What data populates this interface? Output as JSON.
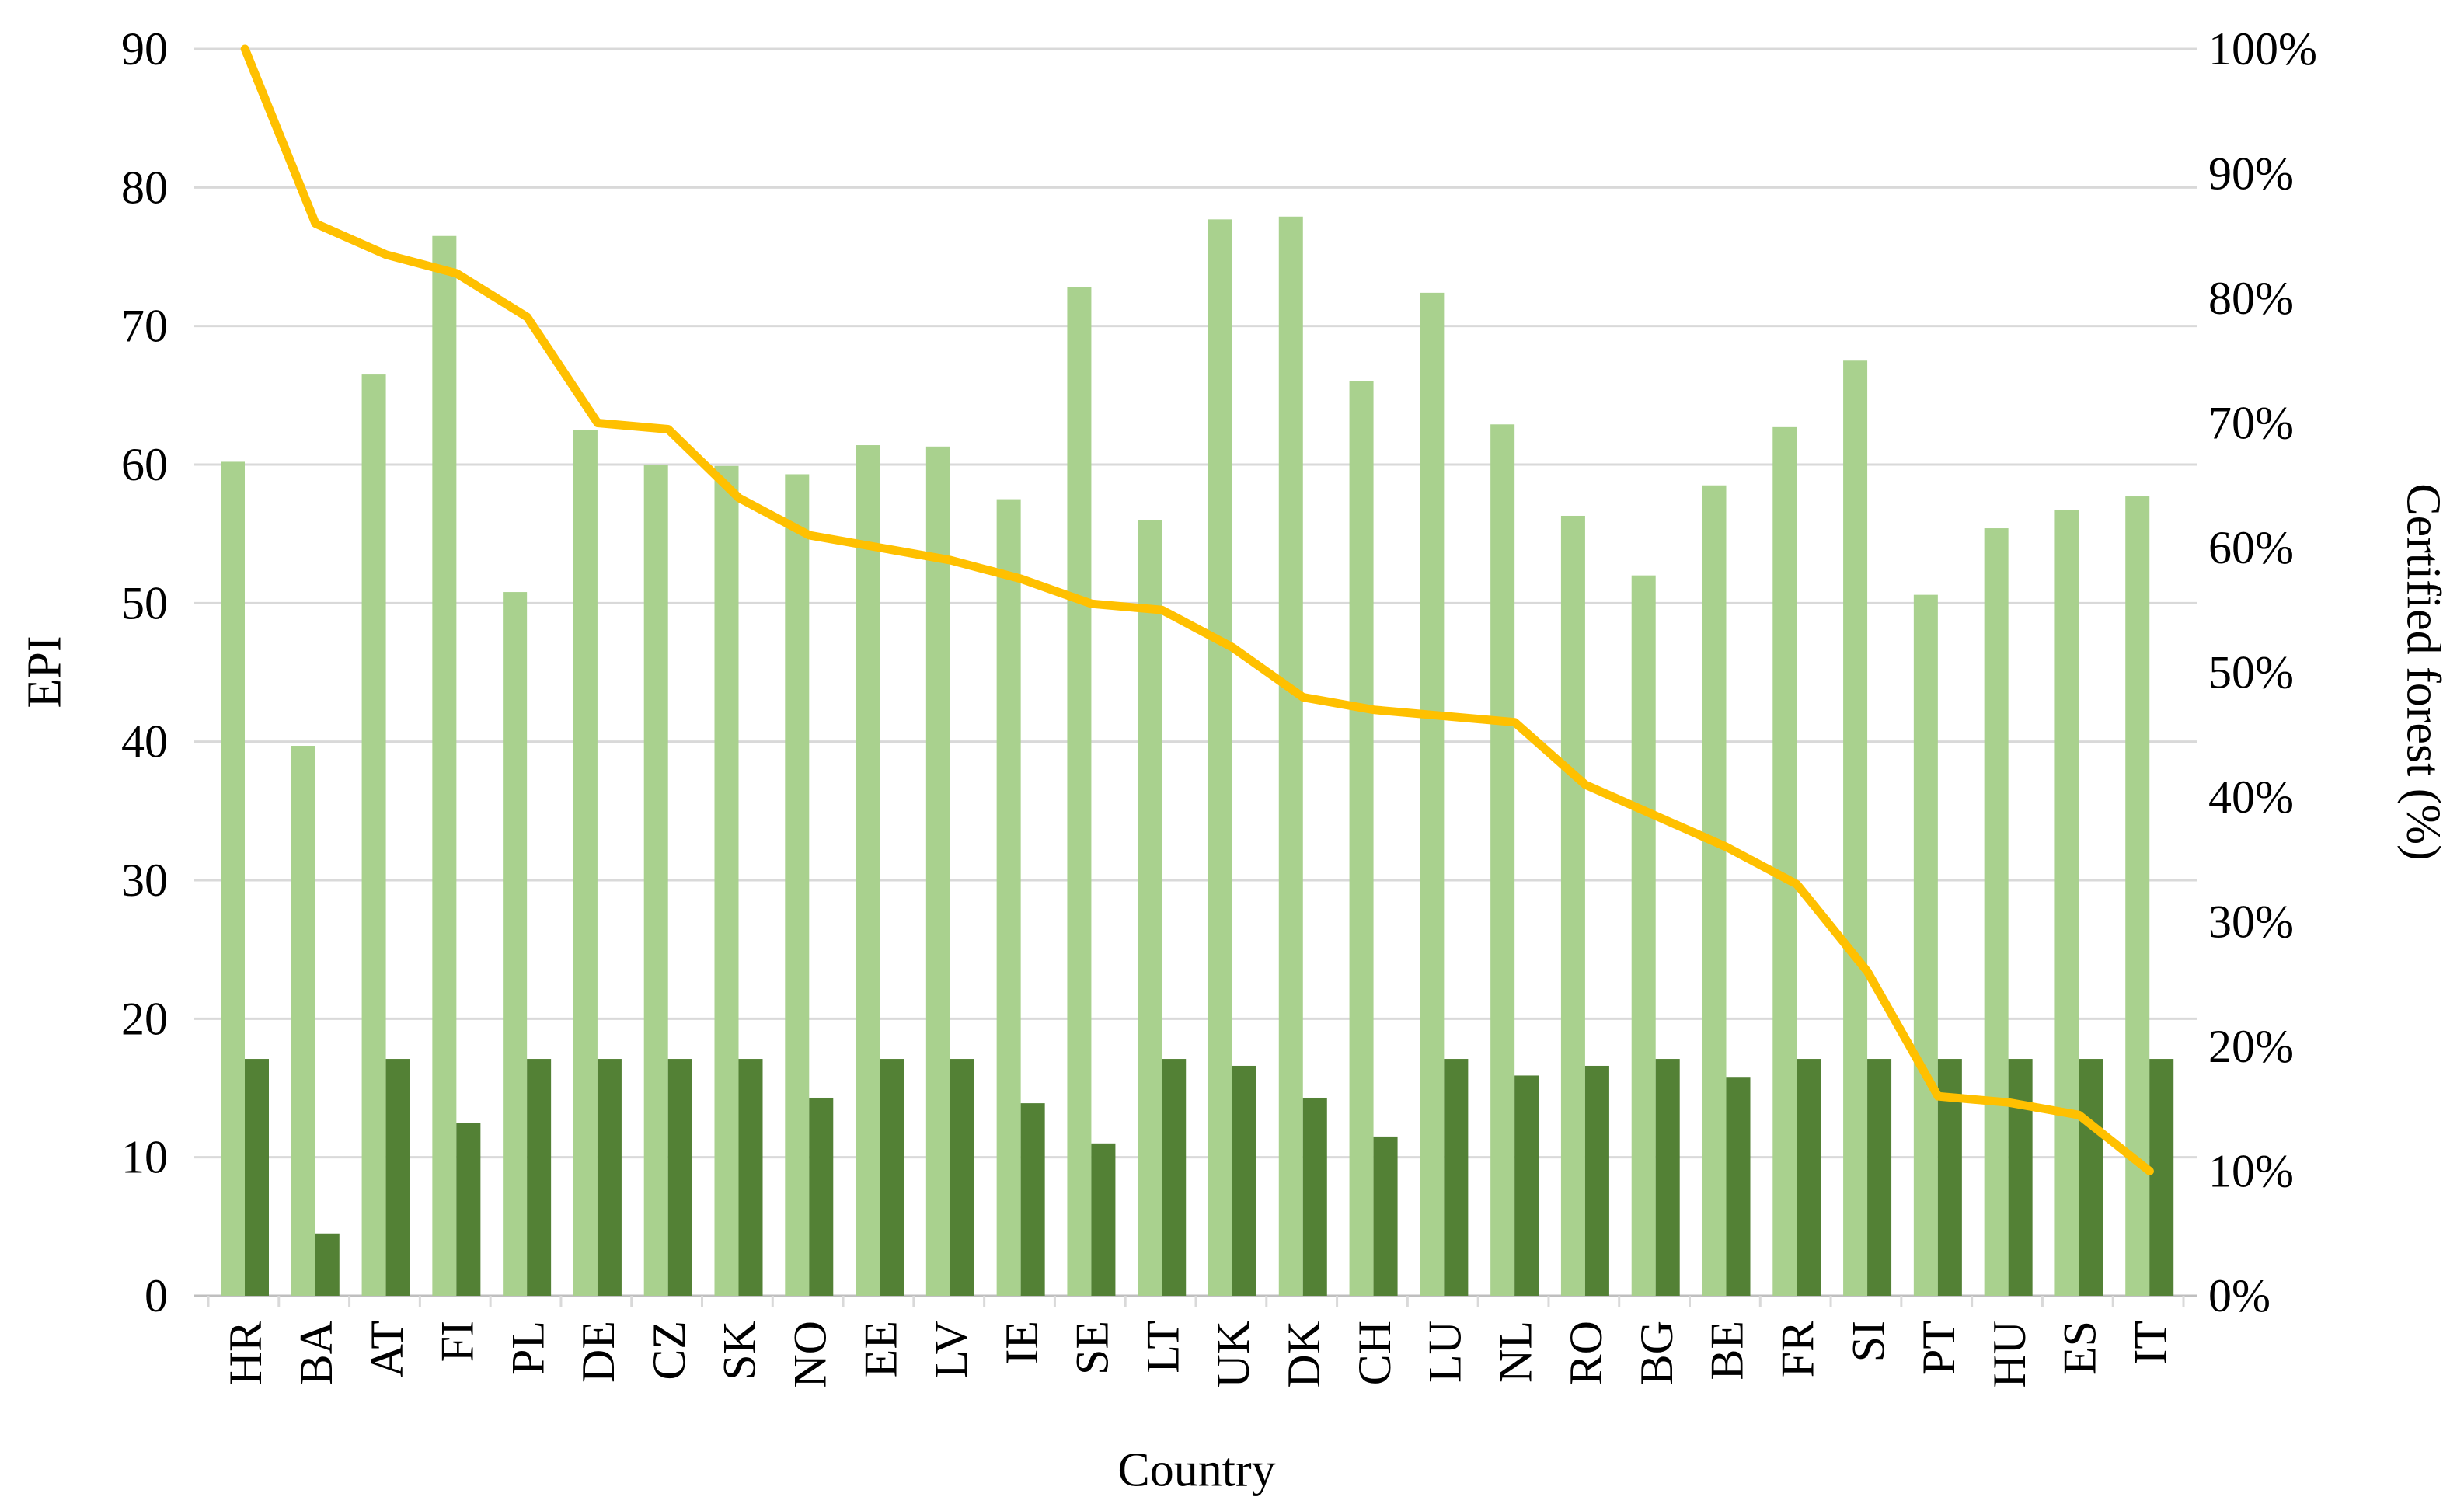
{
  "chart_data": {
    "type": "combo_bar_line",
    "title": "",
    "categories": [
      "HR",
      "BA",
      "AT",
      "FI",
      "PL",
      "DE",
      "CZ",
      "SK",
      "NO",
      "EE",
      "LV",
      "IE",
      "SE",
      "LT",
      "UK",
      "DK",
      "CH",
      "LU",
      "NL",
      "RO",
      "BG",
      "BE",
      "FR",
      "SI",
      "PT",
      "HU",
      "ES",
      "IT"
    ],
    "series": [
      {
        "id": "light-green-bars",
        "type": "bar",
        "axis": "left",
        "color": "#a9d18e",
        "values": [
          60.2,
          39.7,
          66.5,
          76.5,
          50.8,
          62.5,
          60.0,
          59.9,
          59.3,
          61.4,
          61.3,
          57.5,
          72.8,
          56.0,
          77.7,
          77.9,
          66.0,
          72.4,
          62.9,
          56.3,
          52.0,
          58.5,
          62.7,
          67.5,
          50.6,
          55.4,
          56.7,
          57.7
        ]
      },
      {
        "id": "dark-green-bars",
        "type": "bar",
        "axis": "left",
        "color": "#538135",
        "values": [
          17.1,
          4.5,
          17.1,
          12.5,
          17.1,
          17.1,
          17.1,
          17.1,
          14.3,
          17.1,
          17.1,
          13.9,
          11.0,
          17.1,
          16.6,
          14.3,
          11.5,
          17.1,
          15.9,
          16.6,
          17.1,
          15.8,
          17.1,
          17.1,
          17.1,
          17.1,
          17.1,
          17.1
        ]
      },
      {
        "id": "certified-forest-line",
        "type": "line",
        "axis": "right",
        "color": "#ffc000",
        "values": [
          100,
          86,
          83.5,
          82,
          78.5,
          70,
          69.5,
          64,
          61,
          60,
          59,
          57.5,
          55.5,
          55,
          52,
          48,
          47,
          46.5,
          46,
          41,
          38.5,
          36,
          33,
          26,
          16,
          15.5,
          14.5,
          10
        ]
      }
    ],
    "left_axis": {
      "title": "EPI",
      "min": 0,
      "max": 90,
      "tick_step": 10,
      "tick_labels": [
        "0",
        "10",
        "20",
        "30",
        "40",
        "50",
        "60",
        "70",
        "80",
        "90"
      ]
    },
    "right_axis": {
      "title": "Certified forest (%)",
      "min": 0,
      "max": 100,
      "tick_step": 10,
      "tick_labels": [
        "0%",
        "10%",
        "20%",
        "30%",
        "40%",
        "50%",
        "60%",
        "70%",
        "80%",
        "90%",
        "100%"
      ]
    },
    "x_axis": {
      "title": "Country"
    },
    "legend": "none",
    "grid_on": true,
    "grid_color": "#d9d9d9",
    "axis_line_color": "#bfbfbf",
    "background": "#ffffff"
  }
}
